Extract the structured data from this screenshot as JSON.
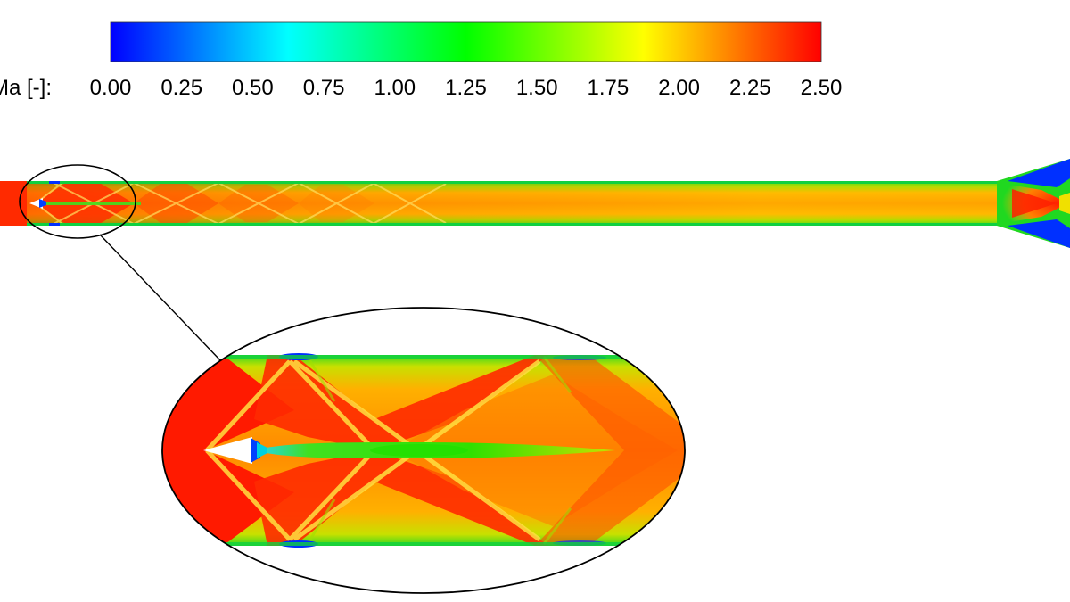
{
  "colorbar": {
    "label": "Ma [-]:",
    "ticks": [
      "0.00",
      "0.25",
      "0.50",
      "0.75",
      "1.00",
      "1.25",
      "1.50",
      "1.75",
      "2.00",
      "2.25",
      "2.50"
    ],
    "range": [
      0.0,
      2.5
    ],
    "colormap": [
      "#0000ff",
      "#00ffff",
      "#00ff00",
      "#ffff00",
      "#ff0000"
    ]
  },
  "colors": {
    "red": "#ff1a00",
    "orange": "#ff7a00",
    "yellow": "#ffc800",
    "green": "#20e000",
    "cyan": "#00d8d8",
    "blue": "#0030ff",
    "outline": "#000000"
  }
}
